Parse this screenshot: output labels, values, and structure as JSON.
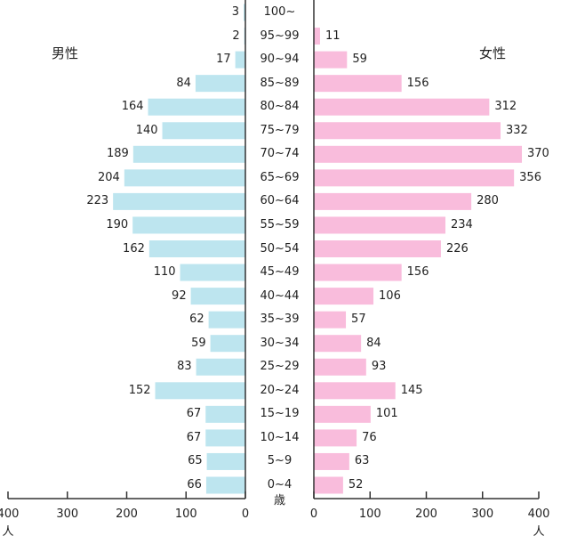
{
  "chart_data": {
    "type": "bar",
    "subtype": "population-pyramid",
    "title": "",
    "xlabel": "人",
    "ylabel": "歳",
    "unit_people": "人",
    "unit_age": "歳",
    "categories": [
      "100~",
      "95~99",
      "90~94",
      "85~89",
      "80~84",
      "75~79",
      "70~74",
      "65~69",
      "60~64",
      "55~59",
      "50~54",
      "45~49",
      "40~44",
      "35~39",
      "30~34",
      "25~29",
      "20~24",
      "15~19",
      "10~14",
      "5~9",
      "0~4"
    ],
    "series": [
      {
        "name": "男性",
        "side": "left",
        "color": "#bde5ef",
        "values": [
          3,
          2,
          17,
          84,
          164,
          140,
          189,
          204,
          223,
          190,
          162,
          110,
          92,
          62,
          59,
          83,
          152,
          67,
          67,
          65,
          66
        ]
      },
      {
        "name": "女性",
        "side": "right",
        "color": "#f9bcdc",
        "values": [
          null,
          11,
          59,
          156,
          312,
          332,
          370,
          356,
          280,
          234,
          226,
          156,
          106,
          57,
          84,
          93,
          145,
          101,
          76,
          63,
          52
        ]
      }
    ],
    "xlim": [
      0,
      400
    ],
    "left_ticks": [
      "400",
      "300",
      "200",
      "100",
      "0"
    ],
    "right_ticks": [
      "0",
      "100",
      "200",
      "300",
      "400"
    ],
    "grid": false,
    "legend": {
      "left_label": "男性",
      "right_label": "女性"
    }
  }
}
